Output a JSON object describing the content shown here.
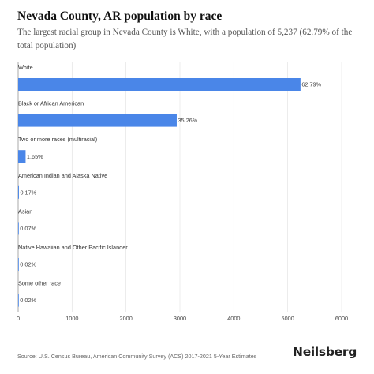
{
  "header": {
    "title": "Nevada County, AR population by race",
    "subtitle": "The largest racial group in Nevada County is White, with a population of 5,237 (62.79% of the total population)"
  },
  "footer": {
    "source": "Source: U.S. Census Bureau, American Community Survey (ACS) 2017-2021 5-Year Estimates",
    "brand": "Neilsberg"
  },
  "colors": {
    "bar": "#4a86e8",
    "grid": "#e4e4e4",
    "axis": "#999999"
  },
  "chart_data": {
    "type": "bar",
    "orientation": "horizontal",
    "categories": [
      "White",
      "Black or African American",
      "Two or more races (multiracial)",
      "American Indian and Alaska Native",
      "Asian",
      "Native Hawaiian and Other Pacific Islander",
      "Some other race"
    ],
    "values": [
      5237,
      2941,
      138,
      14,
      6,
      2,
      2
    ],
    "labels": [
      "62.79%",
      "35.26%",
      "1.65%",
      "0.17%",
      "0.07%",
      "0.02%",
      "0.02%"
    ],
    "xlim": [
      0,
      6000
    ],
    "xticks": [
      0,
      1000,
      2000,
      3000,
      4000,
      5000,
      6000
    ],
    "grid": true
  }
}
